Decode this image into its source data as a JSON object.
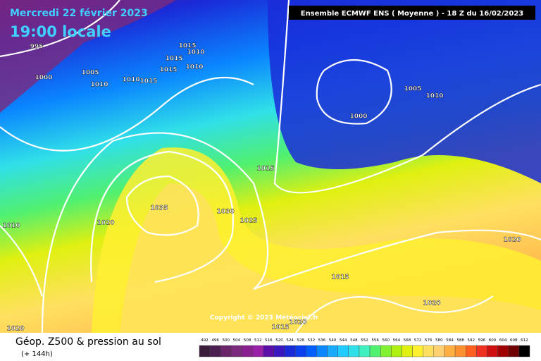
{
  "header": {
    "date": "Mercredi 22 février 2023",
    "time": "19:00 locale",
    "model": "Ensemble ECMWF ENS  ( Moyenne )  -  18 Z du 16/02/2023"
  },
  "copyright": "Copyright © 2023 Météociel.fr",
  "legend": {
    "title": "Géop. Z500 & pression au sol",
    "lead": "(+ 144h)",
    "values": [
      492,
      496,
      500,
      504,
      508,
      512,
      516,
      520,
      524,
      528,
      532,
      536,
      540,
      544,
      548,
      552,
      556,
      560,
      564,
      568,
      572,
      576,
      580,
      584,
      588,
      592,
      596,
      600,
      604,
      608,
      612
    ],
    "colors": [
      "#3a1d3a",
      "#4b1f50",
      "#6a2468",
      "#7b2a7e",
      "#8a1f8f",
      "#9a1fa8",
      "#5b0fa8",
      "#3a18c0",
      "#1a2ad8",
      "#0a40f0",
      "#0060ff",
      "#0a86ff",
      "#1aaaff",
      "#20ccff",
      "#30e0e8",
      "#40f0c0",
      "#50f070",
      "#80f030",
      "#b0f010",
      "#e0f010",
      "#fff030",
      "#ffe060",
      "#ffd070",
      "#ffb040",
      "#ff9030",
      "#ff6020",
      "#f03020",
      "#d01010",
      "#a00000",
      "#700000",
      "#000000"
    ]
  },
  "isobars": [
    995,
    1000,
    1005,
    1010,
    1010,
    1015,
    1015,
    1010,
    1015,
    1015,
    1010,
    1005,
    1010,
    1000,
    1015,
    1035,
    1030,
    1025,
    1020,
    1010,
    1020,
    1015,
    1020,
    1020,
    1015,
    1020
  ]
}
